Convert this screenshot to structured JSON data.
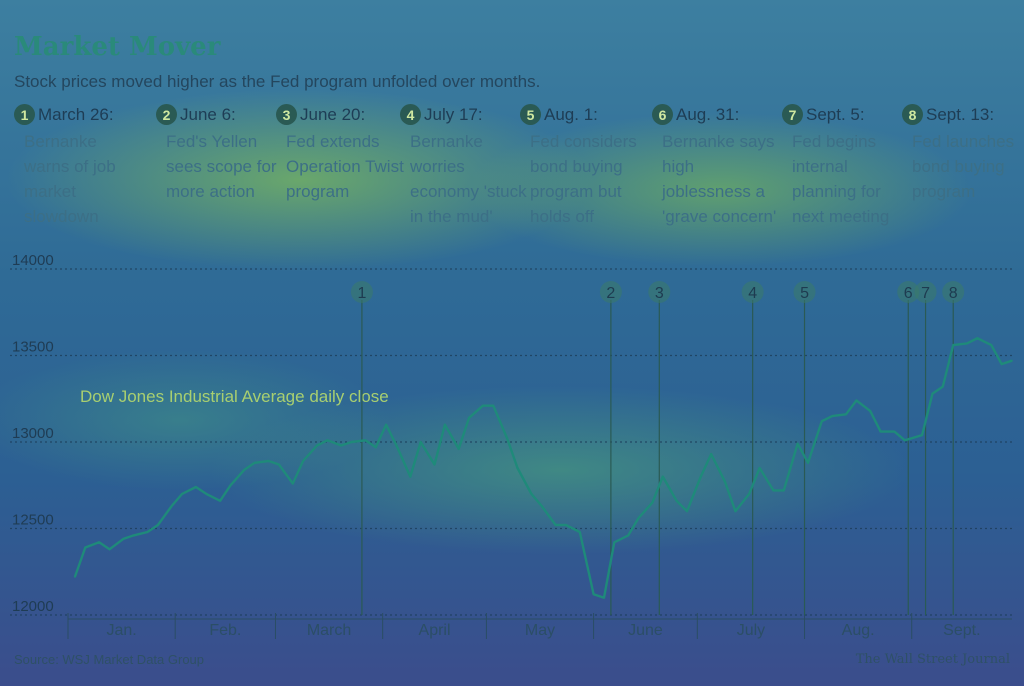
{
  "title": "Market Mover",
  "subtitle": "Stock prices moved higher as the Fed program unfolded over months.",
  "events": [
    {
      "num": "1",
      "date": "March 26:",
      "text": "Bernanke warns of job market slowdown"
    },
    {
      "num": "2",
      "date": "June 6:",
      "text": "Fed's Yellen sees scope for more action"
    },
    {
      "num": "3",
      "date": "June 20:",
      "text": "Fed extends Operation Twist program"
    },
    {
      "num": "4",
      "date": "July 17:",
      "text": "Bernanke worries economy 'stuck in the mud'"
    },
    {
      "num": "5",
      "date": "Aug. 1:",
      "text": "Fed considers bond buying program but holds off"
    },
    {
      "num": "6",
      "date": "Aug. 31:",
      "text": "Bernanke says high joblessness a 'grave concern'"
    },
    {
      "num": "7",
      "date": "Sept. 5:",
      "text": "Fed begins internal planning for next meeting"
    },
    {
      "num": "8",
      "date": "Sept. 13:",
      "text": "Fed launches bond buying program"
    }
  ],
  "annotation": "Dow Jones Industrial Average daily close",
  "source": "Source: WSJ Market Data Group",
  "credit": "The Wall Street Journal",
  "colors": {
    "line": "#1f8a7a",
    "grid": "#1d3d5a",
    "marker": "#2a5a54"
  },
  "chart_data": {
    "type": "line",
    "ylim": [
      12000,
      14000
    ],
    "yticks": [
      12000,
      12500,
      13000,
      13500,
      14000
    ],
    "months": [
      "Jan.",
      "Feb.",
      "March",
      "April",
      "May",
      "June",
      "July",
      "Aug.",
      "Sept."
    ],
    "xlim": [
      "2012-01-01",
      "2012-09-20"
    ],
    "series": [
      {
        "points": [
          [
            "2012-01-03",
            12220
          ],
          [
            "2012-01-06",
            12390
          ],
          [
            "2012-01-10",
            12420
          ],
          [
            "2012-01-13",
            12380
          ],
          [
            "2012-01-17",
            12440
          ],
          [
            "2012-01-20",
            12460
          ],
          [
            "2012-01-24",
            12480
          ],
          [
            "2012-01-27",
            12520
          ],
          [
            "2012-01-31",
            12630
          ],
          [
            "2012-02-03",
            12700
          ],
          [
            "2012-02-07",
            12740
          ],
          [
            "2012-02-10",
            12700
          ],
          [
            "2012-02-14",
            12660
          ],
          [
            "2012-02-17",
            12750
          ],
          [
            "2012-02-21",
            12840
          ],
          [
            "2012-02-24",
            12880
          ],
          [
            "2012-02-28",
            12890
          ],
          [
            "2012-03-02",
            12870
          ],
          [
            "2012-03-06",
            12760
          ],
          [
            "2012-03-09",
            12890
          ],
          [
            "2012-03-13",
            12980
          ],
          [
            "2012-03-16",
            13010
          ],
          [
            "2012-03-20",
            12980
          ],
          [
            "2012-03-23",
            13000
          ],
          [
            "2012-03-27",
            13010
          ],
          [
            "2012-03-30",
            12970
          ],
          [
            "2012-04-02",
            13100
          ],
          [
            "2012-04-05",
            12980
          ],
          [
            "2012-04-09",
            12800
          ],
          [
            "2012-04-12",
            13000
          ],
          [
            "2012-04-16",
            12870
          ],
          [
            "2012-04-19",
            13100
          ],
          [
            "2012-04-23",
            12960
          ],
          [
            "2012-04-26",
            13140
          ],
          [
            "2012-04-30",
            13210
          ],
          [
            "2012-05-03",
            13210
          ],
          [
            "2012-05-07",
            13020
          ],
          [
            "2012-05-10",
            12850
          ],
          [
            "2012-05-14",
            12700
          ],
          [
            "2012-05-17",
            12630
          ],
          [
            "2012-05-21",
            12520
          ],
          [
            "2012-05-24",
            12520
          ],
          [
            "2012-05-28",
            12480
          ],
          [
            "2012-06-01",
            12120
          ],
          [
            "2012-06-04",
            12100
          ],
          [
            "2012-06-07",
            12420
          ],
          [
            "2012-06-11",
            12460
          ],
          [
            "2012-06-14",
            12560
          ],
          [
            "2012-06-18",
            12650
          ],
          [
            "2012-06-21",
            12800
          ],
          [
            "2012-06-25",
            12660
          ],
          [
            "2012-06-28",
            12600
          ],
          [
            "2012-07-02",
            12800
          ],
          [
            "2012-07-05",
            12930
          ],
          [
            "2012-07-09",
            12770
          ],
          [
            "2012-07-12",
            12600
          ],
          [
            "2012-07-16",
            12700
          ],
          [
            "2012-07-19",
            12850
          ],
          [
            "2012-07-23",
            12720
          ],
          [
            "2012-07-26",
            12720
          ],
          [
            "2012-07-30",
            12990
          ],
          [
            "2012-08-02",
            12880
          ],
          [
            "2012-08-06",
            13120
          ],
          [
            "2012-08-09",
            13150
          ],
          [
            "2012-08-13",
            13160
          ],
          [
            "2012-08-16",
            13240
          ],
          [
            "2012-08-20",
            13180
          ],
          [
            "2012-08-23",
            13060
          ],
          [
            "2012-08-27",
            13060
          ],
          [
            "2012-08-30",
            13010
          ],
          [
            "2012-09-04",
            13040
          ],
          [
            "2012-09-07",
            13280
          ],
          [
            "2012-09-10",
            13320
          ],
          [
            "2012-09-13",
            13560
          ],
          [
            "2012-09-17",
            13570
          ],
          [
            "2012-09-20",
            13600
          ],
          [
            "2012-09-24",
            13560
          ],
          [
            "2012-09-27",
            13450
          ],
          [
            "2012-09-30",
            13470
          ]
        ]
      }
    ],
    "markers": [
      {
        "label": "1",
        "date": "2012-03-26"
      },
      {
        "label": "2",
        "date": "2012-06-06"
      },
      {
        "label": "3",
        "date": "2012-06-20"
      },
      {
        "label": "4",
        "date": "2012-07-17"
      },
      {
        "label": "5",
        "date": "2012-08-01"
      },
      {
        "label": "6",
        "date": "2012-08-31"
      },
      {
        "label": "7",
        "date": "2012-09-05"
      },
      {
        "label": "8",
        "date": "2012-09-13"
      }
    ]
  }
}
